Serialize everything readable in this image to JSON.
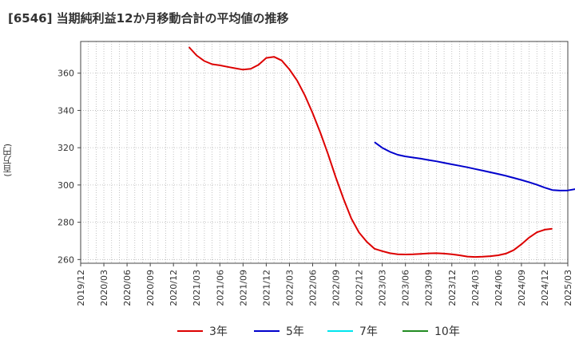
{
  "title": "[6546]  当期純利益12か月移動合計の平均値の推移",
  "chart_data": {
    "type": "line",
    "title": "[6546]  当期純利益12か月移動合計の平均値の推移",
    "ylabel": "(百万円)",
    "xlabel": "",
    "ylim": [
      258,
      377
    ],
    "yticks": [
      260,
      280,
      300,
      320,
      340,
      360
    ],
    "xlim": [
      "2019-12",
      "2025-03"
    ],
    "xticks": [
      "2019/12",
      "2020/03",
      "2020/06",
      "2020/09",
      "2020/12",
      "2021/03",
      "2021/06",
      "2021/09",
      "2021/12",
      "2022/03",
      "2022/06",
      "2022/09",
      "2022/12",
      "2023/03",
      "2023/06",
      "2023/09",
      "2023/12",
      "2024/03",
      "2024/06",
      "2024/09",
      "2024/12",
      "2025/03"
    ],
    "grid": true,
    "legend_position": "bottom",
    "series": [
      {
        "name": "3年",
        "color": "#dd0000",
        "points": [
          [
            "2021-02",
            374
          ],
          [
            "2021-03",
            369.5
          ],
          [
            "2021-04",
            366.5
          ],
          [
            "2021-05",
            364.8
          ],
          [
            "2021-06",
            364.2
          ],
          [
            "2021-07",
            363.4
          ],
          [
            "2021-08",
            362.6
          ],
          [
            "2021-09",
            361.9
          ],
          [
            "2021-10",
            362.3
          ],
          [
            "2021-11",
            364.5
          ],
          [
            "2021-12",
            368.2
          ],
          [
            "2022-01",
            368.8
          ],
          [
            "2022-02",
            366.8
          ],
          [
            "2022-03",
            362
          ],
          [
            "2022-04",
            356
          ],
          [
            "2022-05",
            348
          ],
          [
            "2022-06",
            338.5
          ],
          [
            "2022-07",
            328
          ],
          [
            "2022-08",
            316.5
          ],
          [
            "2022-09",
            304
          ],
          [
            "2022-10",
            292.5
          ],
          [
            "2022-11",
            282
          ],
          [
            "2022-12",
            274.5
          ],
          [
            "2023-01",
            269.5
          ],
          [
            "2023-02",
            265.8
          ],
          [
            "2023-03",
            264.5
          ],
          [
            "2023-04",
            263.4
          ],
          [
            "2023-05",
            262.8
          ],
          [
            "2023-06",
            262.7
          ],
          [
            "2023-07",
            262.8
          ],
          [
            "2023-08",
            263
          ],
          [
            "2023-09",
            263.3
          ],
          [
            "2023-10",
            263.4
          ],
          [
            "2023-11",
            263.2
          ],
          [
            "2023-12",
            262.8
          ],
          [
            "2024-01",
            262.3
          ],
          [
            "2024-02",
            261.6
          ],
          [
            "2024-03",
            261.4
          ],
          [
            "2024-04",
            261.5
          ],
          [
            "2024-05",
            261.8
          ],
          [
            "2024-06",
            262.3
          ],
          [
            "2024-07",
            263.2
          ],
          [
            "2024-08",
            265
          ],
          [
            "2024-09",
            268.2
          ],
          [
            "2024-10",
            271.8
          ],
          [
            "2024-11",
            274.6
          ],
          [
            "2024-12",
            276
          ],
          [
            "2025-01",
            276.5
          ]
        ]
      },
      {
        "name": "5年",
        "color": "#0000cc",
        "points": [
          [
            "2023-02",
            323
          ],
          [
            "2023-03",
            320
          ],
          [
            "2023-04",
            317.8
          ],
          [
            "2023-05",
            316.2
          ],
          [
            "2023-06",
            315.3
          ],
          [
            "2023-07",
            314.7
          ],
          [
            "2023-08",
            314.1
          ],
          [
            "2023-09",
            313.4
          ],
          [
            "2023-10",
            312.7
          ],
          [
            "2023-11",
            311.9
          ],
          [
            "2023-12",
            311.1
          ],
          [
            "2024-01",
            310.3
          ],
          [
            "2024-02",
            309.5
          ],
          [
            "2024-03",
            308.6
          ],
          [
            "2024-04",
            307.7
          ],
          [
            "2024-05",
            306.8
          ],
          [
            "2024-06",
            305.9
          ],
          [
            "2024-07",
            304.9
          ],
          [
            "2024-08",
            303.8
          ],
          [
            "2024-09",
            302.7
          ],
          [
            "2024-10",
            301.5
          ],
          [
            "2024-11",
            300.1
          ],
          [
            "2024-12",
            298.6
          ],
          [
            "2025-01",
            297.3
          ],
          [
            "2025-02",
            297
          ],
          [
            "2025-03",
            297.1
          ],
          [
            "2025-04",
            297.8
          ]
        ]
      },
      {
        "name": "7年",
        "color": "#00e5ee",
        "points": []
      },
      {
        "name": "10年",
        "color": "#228b22",
        "points": []
      }
    ]
  }
}
